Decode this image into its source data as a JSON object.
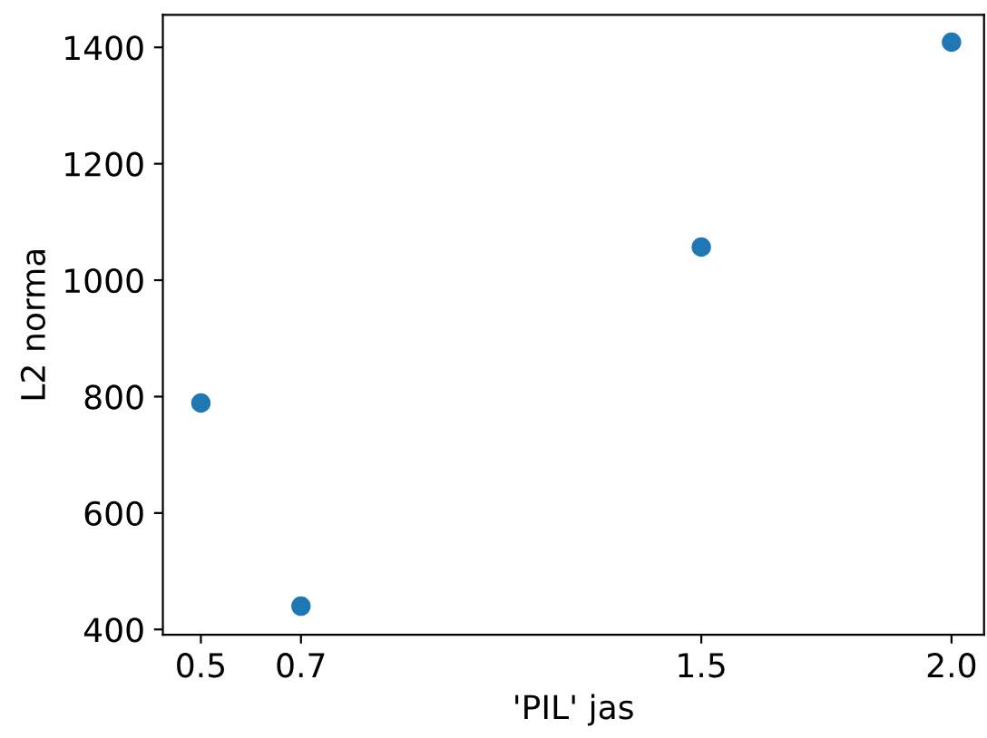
{
  "chart_data": {
    "type": "scatter",
    "xlabel": "'PIL' jas",
    "ylabel": "L2 norma",
    "x": [
      0.5,
      0.7,
      1.5,
      2.0
    ],
    "series": [
      {
        "color": "#1f77b4",
        "values": [
          789,
          440,
          1057,
          1409
        ]
      }
    ],
    "xlim": [
      0.424,
      2.065
    ],
    "ylim": [
      391,
      1456
    ],
    "xticks": [
      0.5,
      0.7,
      1.5,
      {
        "value": 2,
        "label": "2.0"
      }
    ],
    "yticks": [
      400,
      600,
      800,
      1000,
      1200,
      1400
    ],
    "marker": "circle",
    "grid": false,
    "legend": false
  }
}
